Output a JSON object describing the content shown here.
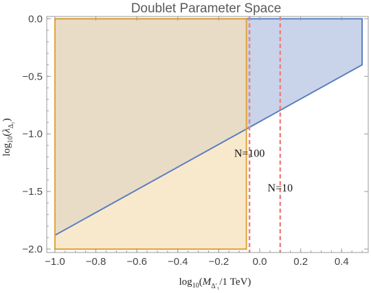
{
  "chart_data": {
    "type": "area",
    "title": "Doublet Parameter Space",
    "xlabel": "log₁₀(M_{Δ′₁}/1 TeV)",
    "ylabel": "log₁₀(λ_{Δ₁})",
    "xlim": [
      -1.04,
      0.53
    ],
    "ylim": [
      -2.03,
      0.02
    ],
    "x_ticks": [
      -1.0,
      -0.8,
      -0.6,
      -0.4,
      -0.2,
      0.0,
      0.2,
      0.4
    ],
    "x_tick_labels": [
      "−1.0",
      "−0.8",
      "−0.6",
      "−0.4",
      "−0.2",
      "0.0",
      "0.2",
      "0.4"
    ],
    "y_ticks": [
      0.0,
      -0.5,
      -1.0,
      -1.5,
      -2.0
    ],
    "y_tick_labels": [
      "0.0",
      "−0.5",
      "−1.0",
      "−1.5",
      "−2.0"
    ],
    "regions": [
      {
        "fill": "#c9d4ea",
        "stroke": "#5a7fbf",
        "polygon": [
          [
            -1.0,
            -1.88
          ],
          [
            0.5,
            -0.4
          ],
          [
            0.5,
            0.0
          ],
          [
            -1.0,
            0.0
          ]
        ]
      },
      {
        "fill": "#f6dfb6",
        "stroke": "#e0a33c",
        "fill_opacity": 0.7,
        "polygon": [
          [
            -1.0,
            -2.0
          ],
          [
            -0.065,
            -2.0
          ],
          [
            -0.065,
            0.0
          ],
          [
            -1.0,
            0.0
          ]
        ]
      }
    ],
    "vlines": [
      {
        "x": -0.05,
        "color": "#f08080",
        "label": "N=100",
        "label_y": -1.2
      },
      {
        "x": 0.1,
        "color": "#f08080",
        "label": "N=10",
        "label_y": -1.5
      }
    ]
  },
  "colors": {
    "frame": "#999999",
    "blue_fill": "#c9d4ea",
    "blue_line": "#5a7fbf",
    "orange_line": "#e0a33c",
    "overlap_fill": "#d6c6b0",
    "dashed": "#f08080"
  }
}
